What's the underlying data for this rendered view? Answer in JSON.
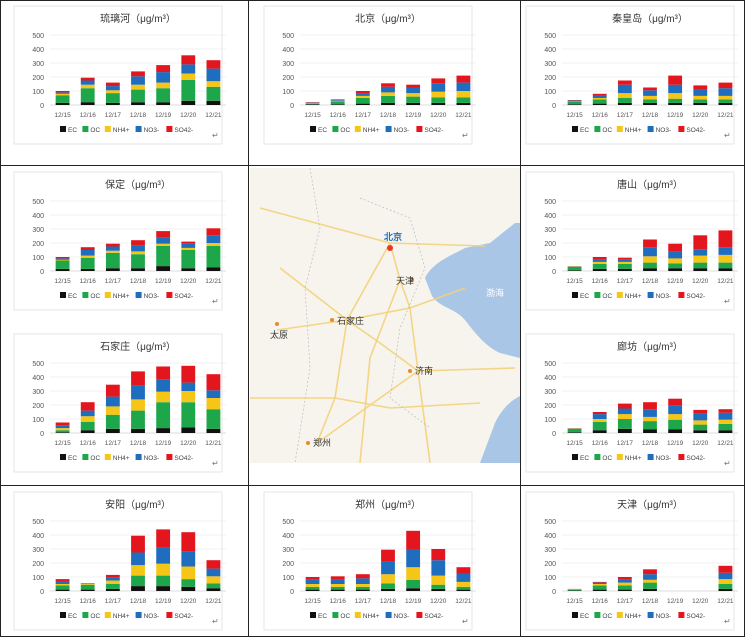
{
  "legend": [
    "EC",
    "OC",
    "NH4+",
    "NO3-",
    "SO42-"
  ],
  "series_colors": [
    "#111111",
    "#1ea64b",
    "#f5c518",
    "#1f6dbf",
    "#e3161e"
  ],
  "return_mark": "↵",
  "map": {
    "labels": {
      "beijing": "北京",
      "tianjin": "天津",
      "shijiazhuang": "石家庄",
      "taiyuan": "太原",
      "jinan": "济南",
      "zhengzhou": "郑州",
      "bohai": "渤海"
    }
  },
  "chart_data": [
    {
      "id": "liulihe",
      "type": "bar",
      "stacked": true,
      "title": "琉璃河（μg/m³）",
      "categories": [
        "12/15",
        "12/16",
        "12/17",
        "12/18",
        "12/19",
        "12/20",
        "12/21"
      ],
      "yticks": [
        "0",
        "100",
        "200",
        "300",
        "400",
        "500"
      ],
      "ylim": [
        0,
        500
      ],
      "series": [
        {
          "name": "EC",
          "values": [
            15,
            20,
            15,
            20,
            20,
            30,
            30
          ]
        },
        {
          "name": "OC",
          "values": [
            55,
            100,
            70,
            90,
            100,
            150,
            100
          ]
        },
        {
          "name": "NH4+",
          "values": [
            10,
            25,
            20,
            35,
            40,
            45,
            40
          ]
        },
        {
          "name": "NO3-",
          "values": [
            10,
            30,
            30,
            60,
            75,
            65,
            90
          ]
        },
        {
          "name": "SO42-",
          "values": [
            10,
            20,
            25,
            35,
            50,
            65,
            60
          ]
        }
      ]
    },
    {
      "id": "beijing",
      "type": "bar",
      "stacked": true,
      "title": "北京（μg/m³）",
      "categories": [
        "12/15",
        "12/16",
        "12/17",
        "12/18",
        "12/19",
        "12/20",
        "12/21"
      ],
      "yticks": [
        "0",
        "100",
        "200",
        "300",
        "400",
        "500"
      ],
      "ylim": [
        0,
        500
      ],
      "series": [
        {
          "name": "EC",
          "values": [
            5,
            5,
            10,
            15,
            15,
            15,
            15
          ]
        },
        {
          "name": "OC",
          "values": [
            5,
            20,
            40,
            50,
            45,
            40,
            40
          ]
        },
        {
          "name": "NH4+",
          "values": [
            3,
            5,
            15,
            25,
            25,
            40,
            45
          ]
        },
        {
          "name": "NO3-",
          "values": [
            4,
            5,
            15,
            40,
            40,
            60,
            60
          ]
        },
        {
          "name": "SO42-",
          "values": [
            3,
            5,
            20,
            25,
            20,
            35,
            50
          ]
        }
      ]
    },
    {
      "id": "qinhuangdao",
      "type": "bar",
      "stacked": true,
      "title": "秦皇岛（μg/m³）",
      "categories": [
        "12/15",
        "12/16",
        "12/17",
        "12/18",
        "12/19",
        "12/20",
        "12/21"
      ],
      "yticks": [
        "0",
        "100",
        "200",
        "300",
        "400",
        "500"
      ],
      "ylim": [
        0,
        500
      ],
      "series": [
        {
          "name": "EC",
          "values": [
            5,
            10,
            15,
            15,
            15,
            15,
            15
          ]
        },
        {
          "name": "OC",
          "values": [
            20,
            30,
            35,
            25,
            30,
            25,
            25
          ]
        },
        {
          "name": "NH4+",
          "values": [
            3,
            10,
            35,
            25,
            40,
            25,
            25
          ]
        },
        {
          "name": "NO3-",
          "values": [
            4,
            15,
            60,
            40,
            60,
            45,
            55
          ]
        },
        {
          "name": "SO42-",
          "values": [
            3,
            15,
            30,
            20,
            65,
            30,
            40
          ]
        }
      ]
    },
    {
      "id": "baoding",
      "type": "bar",
      "stacked": true,
      "title": "保定（μg/m³）",
      "categories": [
        "12/15",
        "12/16",
        "12/17",
        "12/18",
        "12/19",
        "12/20",
        "12/21"
      ],
      "yticks": [
        "0",
        "100",
        "200",
        "300",
        "400",
        "500"
      ],
      "ylim": [
        0,
        500
      ],
      "series": [
        {
          "name": "EC",
          "values": [
            15,
            15,
            20,
            20,
            35,
            20,
            25
          ]
        },
        {
          "name": "OC",
          "values": [
            60,
            80,
            110,
            100,
            145,
            130,
            155
          ]
        },
        {
          "name": "NH4+",
          "values": [
            5,
            15,
            15,
            20,
            15,
            15,
            20
          ]
        },
        {
          "name": "NO3-",
          "values": [
            10,
            40,
            30,
            45,
            45,
            30,
            55
          ]
        },
        {
          "name": "SO42-",
          "values": [
            10,
            20,
            20,
            35,
            45,
            15,
            50
          ]
        }
      ]
    },
    {
      "id": "shijiazhuang",
      "type": "bar",
      "stacked": true,
      "title": "石家庄（μg/m³）",
      "categories": [
        "12/15",
        "12/16",
        "12/17",
        "12/18",
        "12/19",
        "12/20",
        "12/21"
      ],
      "yticks": [
        "0",
        "100",
        "200",
        "300",
        "400",
        "500"
      ],
      "ylim": [
        0,
        500
      ],
      "series": [
        {
          "name": "EC",
          "values": [
            5,
            20,
            30,
            30,
            35,
            40,
            30
          ]
        },
        {
          "name": "OC",
          "values": [
            15,
            60,
            100,
            130,
            185,
            180,
            140
          ]
        },
        {
          "name": "NH4+",
          "values": [
            15,
            40,
            60,
            80,
            75,
            80,
            80
          ]
        },
        {
          "name": "NO3-",
          "values": [
            20,
            40,
            70,
            100,
            90,
            60,
            55
          ]
        },
        {
          "name": "SO42-",
          "values": [
            20,
            60,
            85,
            100,
            90,
            120,
            115
          ]
        }
      ]
    },
    {
      "id": "tangshan",
      "type": "bar",
      "stacked": true,
      "title": "唐山（μg/m³）",
      "categories": [
        "12/15",
        "12/16",
        "12/17",
        "12/18",
        "12/19",
        "12/20",
        "12/21"
      ],
      "yticks": [
        "0",
        "100",
        "200",
        "300",
        "400",
        "500"
      ],
      "ylim": [
        0,
        500
      ],
      "series": [
        {
          "name": "EC",
          "values": [
            5,
            15,
            15,
            20,
            20,
            20,
            20
          ]
        },
        {
          "name": "OC",
          "values": [
            25,
            35,
            35,
            40,
            35,
            40,
            40
          ]
        },
        {
          "name": "NH4+",
          "values": [
            2,
            15,
            15,
            45,
            35,
            50,
            55
          ]
        },
        {
          "name": "NO3-",
          "values": [
            2,
            15,
            15,
            65,
            50,
            45,
            55
          ]
        },
        {
          "name": "SO42-",
          "values": [
            1,
            20,
            15,
            55,
            55,
            100,
            120
          ]
        }
      ]
    },
    {
      "id": "langfang",
      "type": "bar",
      "stacked": true,
      "title": "廊坊（μg/m³）",
      "categories": [
        "12/15",
        "12/16",
        "12/17",
        "12/18",
        "12/19",
        "12/20",
        "12/21"
      ],
      "yticks": [
        "0",
        "100",
        "200",
        "300",
        "400",
        "500"
      ],
      "ylim": [
        0,
        500
      ],
      "series": [
        {
          "name": "EC",
          "values": [
            5,
            20,
            30,
            25,
            25,
            20,
            20
          ]
        },
        {
          "name": "OC",
          "values": [
            25,
            60,
            70,
            60,
            70,
            40,
            45
          ]
        },
        {
          "name": "NH4+",
          "values": [
            2,
            20,
            35,
            30,
            40,
            30,
            30
          ]
        },
        {
          "name": "NO3-",
          "values": [
            2,
            35,
            40,
            55,
            60,
            50,
            50
          ]
        },
        {
          "name": "SO42-",
          "values": [
            1,
            15,
            35,
            50,
            50,
            25,
            25
          ]
        }
      ]
    },
    {
      "id": "anyang",
      "type": "bar",
      "stacked": true,
      "title": "安阳（μg/m³）",
      "categories": [
        "12/15",
        "12/16",
        "12/17",
        "12/18",
        "12/19",
        "12/20",
        "12/21"
      ],
      "yticks": [
        "0",
        "100",
        "200",
        "300",
        "400",
        "500"
      ],
      "ylim": [
        0,
        500
      ],
      "series": [
        {
          "name": "EC",
          "values": [
            10,
            10,
            15,
            35,
            35,
            30,
            20
          ]
        },
        {
          "name": "OC",
          "values": [
            30,
            35,
            35,
            75,
            75,
            55,
            35
          ]
        },
        {
          "name": "NH4+",
          "values": [
            10,
            5,
            25,
            75,
            85,
            90,
            50
          ]
        },
        {
          "name": "NO3-",
          "values": [
            15,
            3,
            20,
            90,
            115,
            110,
            55
          ]
        },
        {
          "name": "SO42-",
          "values": [
            20,
            2,
            20,
            120,
            130,
            135,
            60
          ]
        }
      ]
    },
    {
      "id": "zhengzhou",
      "type": "bar",
      "stacked": true,
      "title": "郑州（μg/m³）",
      "categories": [
        "12/15",
        "12/16",
        "12/17",
        "12/18",
        "12/19",
        "12/20",
        "12/21"
      ],
      "yticks": [
        "0",
        "100",
        "200",
        "300",
        "400",
        "500"
      ],
      "ylim": [
        0,
        500
      ],
      "series": [
        {
          "name": "EC",
          "values": [
            10,
            10,
            10,
            15,
            20,
            15,
            10
          ]
        },
        {
          "name": "OC",
          "values": [
            20,
            20,
            20,
            40,
            60,
            30,
            20
          ]
        },
        {
          "name": "NH4+",
          "values": [
            20,
            20,
            20,
            65,
            90,
            65,
            35
          ]
        },
        {
          "name": "NO3-",
          "values": [
            30,
            30,
            40,
            90,
            130,
            110,
            60
          ]
        },
        {
          "name": "SO42-",
          "values": [
            20,
            25,
            30,
            85,
            130,
            80,
            45
          ]
        }
      ]
    },
    {
      "id": "tianjin",
      "type": "bar",
      "stacked": true,
      "title": "天津（μg/m³）",
      "categories": [
        "12/15",
        "12/16",
        "12/17",
        "12/18",
        "12/19",
        "12/20",
        "12/21"
      ],
      "yticks": [
        "0",
        "100",
        "200",
        "300",
        "400",
        "500"
      ],
      "ylim": [
        0,
        500
      ],
      "series": [
        {
          "name": "EC",
          "values": [
            3,
            10,
            10,
            15,
            null,
            null,
            15
          ]
        },
        {
          "name": "OC",
          "values": [
            5,
            30,
            30,
            45,
            null,
            null,
            35
          ]
        },
        {
          "name": "NH4+",
          "values": [
            3,
            10,
            20,
            20,
            null,
            null,
            35
          ]
        },
        {
          "name": "NO3-",
          "values": [
            2,
            10,
            20,
            40,
            null,
            null,
            45
          ]
        },
        {
          "name": "SO42-",
          "values": [
            2,
            5,
            20,
            35,
            null,
            null,
            50
          ]
        }
      ]
    }
  ]
}
